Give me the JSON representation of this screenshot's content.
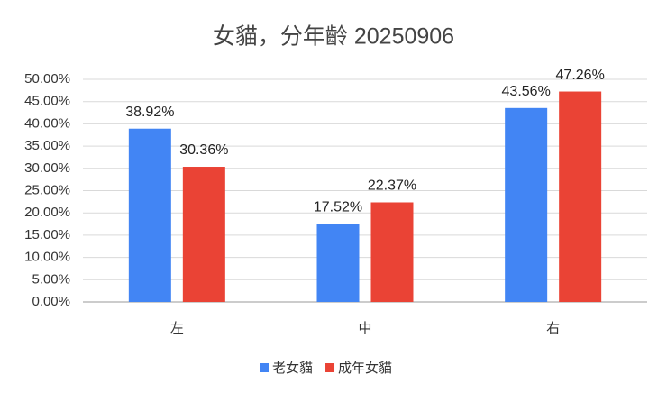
{
  "chart_data": {
    "type": "bar",
    "title": "女貓，分年齡 20250906",
    "categories": [
      "左",
      "中",
      "右"
    ],
    "series": [
      {
        "name": "老女貓",
        "color": "#4285f4",
        "values": [
          38.92,
          17.52,
          43.56
        ],
        "value_labels": [
          "38.92%",
          "17.52%",
          "43.56%"
        ]
      },
      {
        "name": "成年女貓",
        "color": "#ea4335",
        "values": [
          30.36,
          22.37,
          47.26
        ],
        "value_labels": [
          "30.36%",
          "22.37%",
          "47.26%"
        ]
      }
    ],
    "ylim": [
      0,
      50
    ],
    "yticks": [
      {
        "value": 0,
        "label": "0.00%"
      },
      {
        "value": 5,
        "label": "5.00%"
      },
      {
        "value": 10,
        "label": "10.00%"
      },
      {
        "value": 15,
        "label": "15.00%"
      },
      {
        "value": 20,
        "label": "20.00%"
      },
      {
        "value": 25,
        "label": "25.00%"
      },
      {
        "value": 30,
        "label": "30.00%"
      },
      {
        "value": 35,
        "label": "35.00%"
      },
      {
        "value": 40,
        "label": "40.00%"
      },
      {
        "value": 45,
        "label": "45.00%"
      },
      {
        "value": 50,
        "label": "50.00%"
      }
    ],
    "grid": true,
    "legend": "bottom"
  }
}
